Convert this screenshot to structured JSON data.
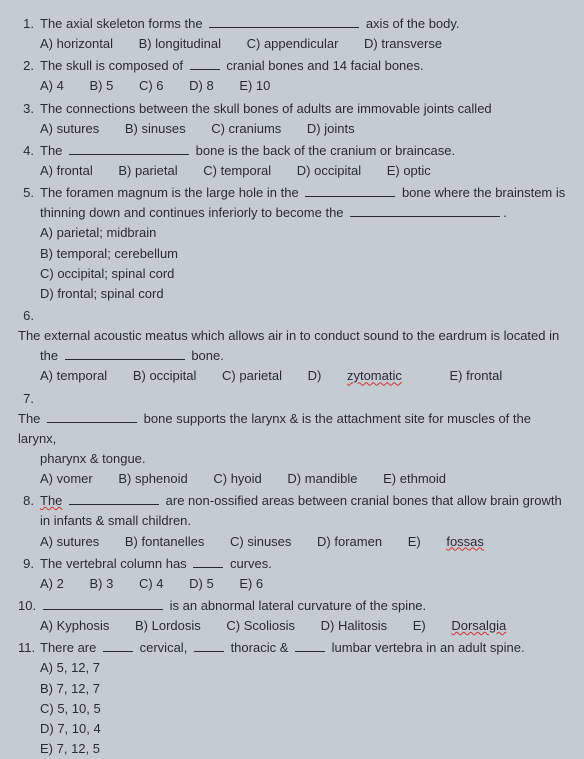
{
  "q": [
    {
      "n": "1.",
      "stem": [
        "The axial skeleton forms the",
        "axis of the body."
      ],
      "opts": [
        "A)  horizontal",
        "B) longitudinal",
        "C) appendicular",
        "D) transverse"
      ]
    },
    {
      "n": "2.",
      "stem": [
        "The skull is composed of",
        "cranial bones and 14 facial bones."
      ],
      "opts": [
        "A)  4",
        "B) 5",
        "C) 6",
        "D) 8",
        "E) 10"
      ]
    },
    {
      "n": "3.",
      "stem_plain": "The connections between the skull bones of adults are immovable joints called",
      "opts": [
        "A)  sutures",
        "B) sinuses",
        "C) craniums",
        "D) joints"
      ]
    },
    {
      "n": "4.",
      "stem": [
        "The",
        "bone is the back of the cranium or braincase."
      ],
      "opts": [
        "A)  frontal",
        "B) parietal",
        "C) temporal",
        "D) occipital",
        "E) optic"
      ]
    },
    {
      "n": "5.",
      "line1a": "The foramen magnum is the large hole in the",
      "line1b": "bone where the brainstem is",
      "line2a": "thinning down and continues inferiorly to become the",
      "line2b": ".",
      "opts": [
        "A)  parietal;  midbrain",
        "B)  temporal; cerebellum",
        "C)  occipital; spinal cord",
        "D)  frontal; spinal cord"
      ]
    },
    {
      "n": "6.",
      "line1": "The external acoustic meatus which allows air in to conduct sound to the eardrum is located in",
      "line2a": "the",
      "line2b": "bone.",
      "opts": [
        "A)  temporal",
        "B) occipital",
        "C) parietal",
        "D)",
        "E) frontal"
      ],
      "opt_err": "zytomatic"
    },
    {
      "n": "7.",
      "line1a": "The",
      "line1b": "bone supports the larynx & is the attachment site for muscles of the larynx,",
      "line2": "pharynx & tongue.",
      "opts": [
        "A)  vomer",
        "B) sphenoid",
        "C) hyoid",
        "D) mandible",
        "E) ethmoid"
      ]
    },
    {
      "n": "8.",
      "line1a": "The",
      "line1b": "are non-ossified areas between cranial bones that allow brain growth",
      "line2": "in infants & small children.",
      "opts": [
        "A)  sutures",
        "B) fontanelles",
        "C) sinuses",
        "D) foramen",
        "E)"
      ],
      "opt_err": "fossas"
    },
    {
      "n": "9.",
      "stem": [
        "The vertebral column has",
        "curves."
      ],
      "opts": [
        "A)  2",
        "B) 3",
        "C) 4",
        "D) 5",
        "E) 6"
      ]
    },
    {
      "n": "10.",
      "stem_after": "is an abnormal lateral curvature of the spine.",
      "opts": [
        "A)  Kyphosis",
        "B) Lordosis",
        "C) Scoliosis",
        "D) Halitosis",
        "E)"
      ],
      "opt_err": "Dorsalgia"
    },
    {
      "n": "11.",
      "stem_parts": [
        "There are",
        "cervical,",
        "thoracic &",
        "lumbar vertebra in an adult spine."
      ],
      "opts": [
        "A)  5, 12, 7",
        "B)  7, 12, 7",
        "C)  5, 10, 5",
        "D)  7, 10, 4",
        "E)  7, 12, 5"
      ]
    }
  ]
}
